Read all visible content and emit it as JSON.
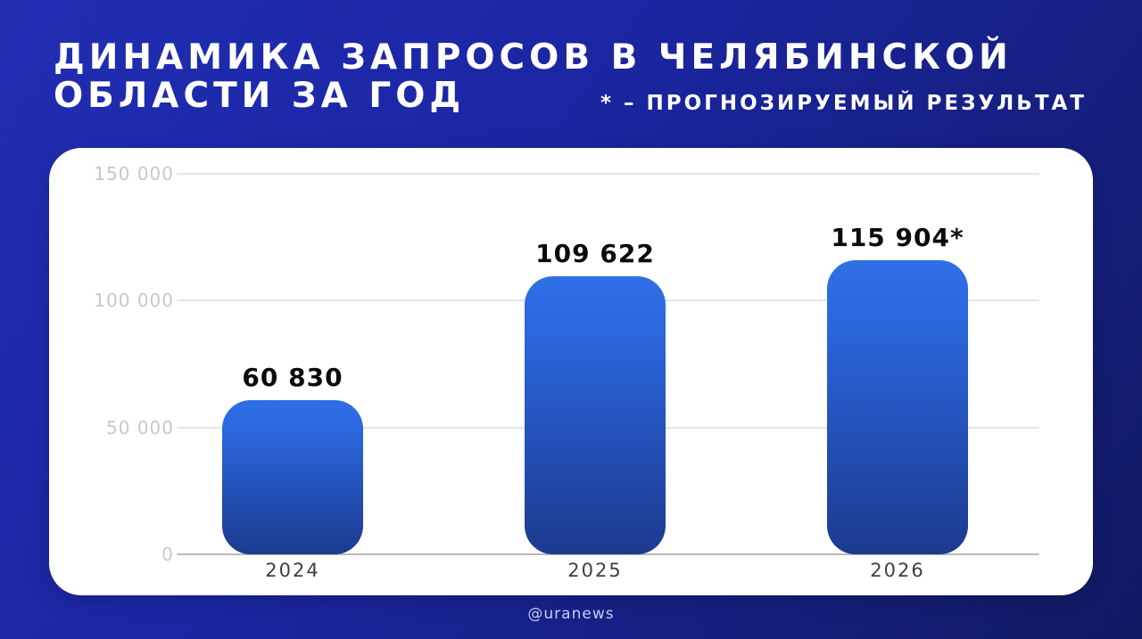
{
  "header": {
    "title_line1": "ДИНАМИКА ЗАПРОСОВ В ЧЕЛЯБИНСКОЙ",
    "title_line2": "ОБЛАСТИ ЗА ГОД",
    "footnote": "* – ПРОГНОЗИРУЕМЫЙ РЕЗУЛЬТАТ"
  },
  "footer": {
    "watermark": "@uranews"
  },
  "colors": {
    "background_top": "#212eb3",
    "background_bottom": "#111a62",
    "card": "#ffffff",
    "bar_gradient_top": "#2f6fe6",
    "bar_gradient_bottom": "#1c3a8f",
    "value_label": "#0a0a0a",
    "ytick_label": "#c8c8c8",
    "xtick_label": "#3f3f3f"
  },
  "chart_data": {
    "type": "bar",
    "title": "Динамика запросов в Челябинской области за год",
    "categories": [
      "2024",
      "2025",
      "2026"
    ],
    "values": [
      60830,
      109622,
      115904
    ],
    "bar_labels": [
      "60 830",
      "109 622",
      "115 904*"
    ],
    "yticks": [
      "150 000",
      "100 000",
      "50 000",
      "0"
    ],
    "ytick_values": [
      150000,
      100000,
      50000,
      0
    ],
    "ylim": [
      0,
      150000
    ],
    "grid": true,
    "legend": "none",
    "annotation": "* – прогнозируемый результат"
  }
}
